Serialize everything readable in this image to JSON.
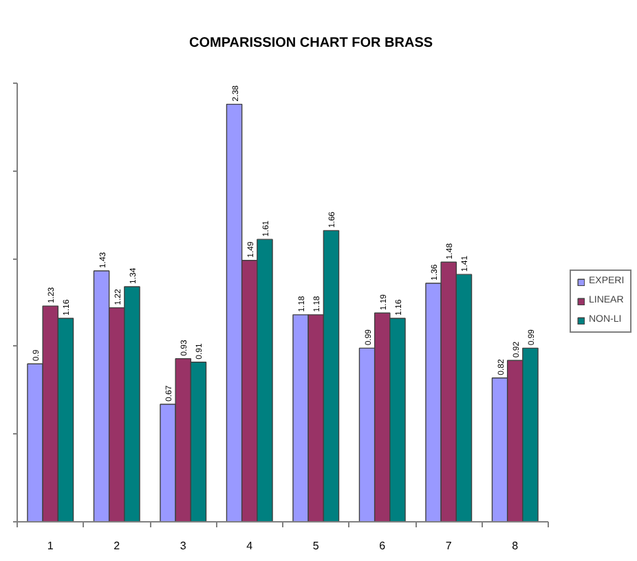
{
  "chart_data": {
    "type": "bar",
    "title": "COMPARISSION CHART FOR BRASS",
    "categories": [
      "1",
      "2",
      "3",
      "4",
      "5",
      "6",
      "7",
      "8"
    ],
    "series": [
      {
        "name": "EXPERI",
        "color": "#9999ff",
        "values": [
          0.9,
          1.43,
          0.67,
          2.38,
          1.18,
          0.99,
          1.36,
          0.82
        ]
      },
      {
        "name": "LINEAR",
        "color": "#993366",
        "values": [
          1.23,
          1.22,
          0.93,
          1.49,
          1.18,
          1.19,
          1.48,
          0.92
        ]
      },
      {
        "name": "NON-LI",
        "color": "#008080",
        "values": [
          1.16,
          1.34,
          0.91,
          1.61,
          1.66,
          1.16,
          1.41,
          0.99
        ]
      }
    ],
    "ylim": [
      0,
      2.5
    ],
    "yticks": [
      {
        "value": 0,
        "label": null
      },
      {
        "value": 0.5,
        "label": null
      },
      {
        "value": 1,
        "label": null
      },
      {
        "value": 1.5,
        "label": null
      },
      {
        "value": 2,
        "label": null
      },
      {
        "value": 2.5,
        "label": null
      }
    ],
    "tick_labels": "x",
    "data_labels": true,
    "grid": false,
    "legend": "right"
  }
}
